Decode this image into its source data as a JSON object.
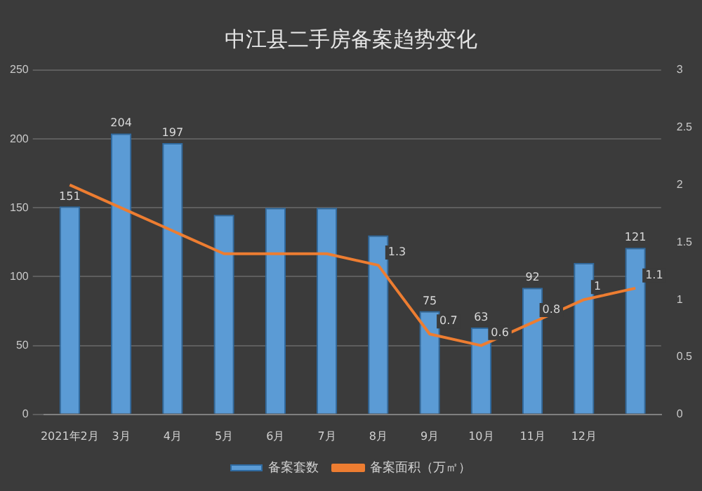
{
  "chart_data": {
    "type": "bar",
    "title": "中江县二手房备案趋势变化",
    "categories": [
      "2021年2月",
      "3月",
      "4月",
      "5月",
      "6月",
      "7月",
      "8月",
      "9月",
      "10月",
      "11月",
      "12月",
      null
    ],
    "series": [
      {
        "name": "备案套数",
        "color": "#5b9bd5",
        "values": [
          151,
          204,
          197,
          145,
          150,
          150,
          130,
          75,
          63,
          92,
          110,
          121
        ],
        "value_labels": [
          "151",
          "204",
          "197",
          null,
          null,
          null,
          null,
          "75",
          "63",
          "92",
          null,
          "121"
        ]
      },
      {
        "name": "备案面积（万㎡）",
        "type": "line",
        "axis": "y2",
        "color": "#ed7d31",
        "values": [
          2.0,
          1.8,
          1.6,
          1.4,
          1.4,
          1.4,
          1.3,
          0.7,
          0.6,
          0.8,
          1.0,
          1.1
        ],
        "value_labels": [
          null,
          null,
          null,
          null,
          null,
          null,
          "1.3",
          "0.7",
          "0.6",
          "0.8",
          "1",
          "1.1"
        ]
      }
    ],
    "ylim": [
      0,
      250
    ],
    "yticks": [
      0,
      50,
      100,
      150,
      200,
      250
    ],
    "y2lim": [
      0,
      3
    ],
    "y2ticks": [
      0,
      0.5,
      1,
      1.5,
      2,
      2.5,
      3
    ],
    "grid": "y",
    "legend": "bottom",
    "marker": "none"
  }
}
